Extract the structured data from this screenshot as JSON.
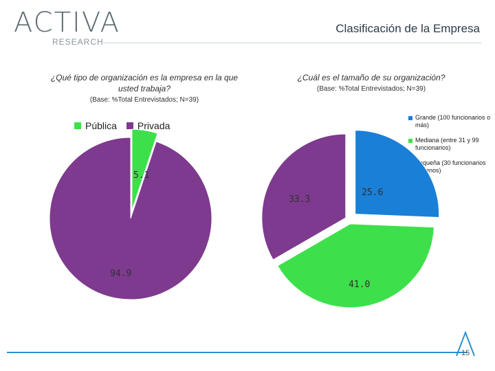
{
  "header": {
    "logo_text": "ACTIVA",
    "logo_subtext": "RESEARCH",
    "title": "Clasificación de la Empresa"
  },
  "colors": {
    "green": "#3de04a",
    "purple": "#7e3a8e",
    "blue": "#1a7fd6",
    "rule": "#2a8fd0"
  },
  "chart_data": [
    {
      "type": "pie",
      "title": "¿Qué tipo de organización es la empresa en la que usted trabaja?",
      "subtitle": "(Base: %Total Entrevistados; N=39)",
      "legend_position": "top",
      "slices": [
        {
          "name": "Pública",
          "value": 5.1,
          "label": "5.1",
          "color": "#3de04a"
        },
        {
          "name": "Privada",
          "value": 94.9,
          "label": "94.9",
          "color": "#7e3a8e"
        }
      ]
    },
    {
      "type": "pie",
      "title": "¿Cuál es el tamaño de su organización?",
      "subtitle": "(Base: %Total Entrevistados; N=39)",
      "legend_position": "right",
      "slices": [
        {
          "name": "Grande (100 funcionarios o más)",
          "value": 25.6,
          "label": "25.6",
          "color": "#1a7fd6"
        },
        {
          "name": "Mediana (entre 31 y 99 funcionarios)",
          "value": 41.0,
          "label": "41.0",
          "color": "#3de04a"
        },
        {
          "name": "Pequeña (30 funcionarios o menos)",
          "value": 33.3,
          "label": "33.3",
          "color": "#7e3a8e"
        }
      ]
    }
  ],
  "footer": {
    "page_number": "15"
  }
}
